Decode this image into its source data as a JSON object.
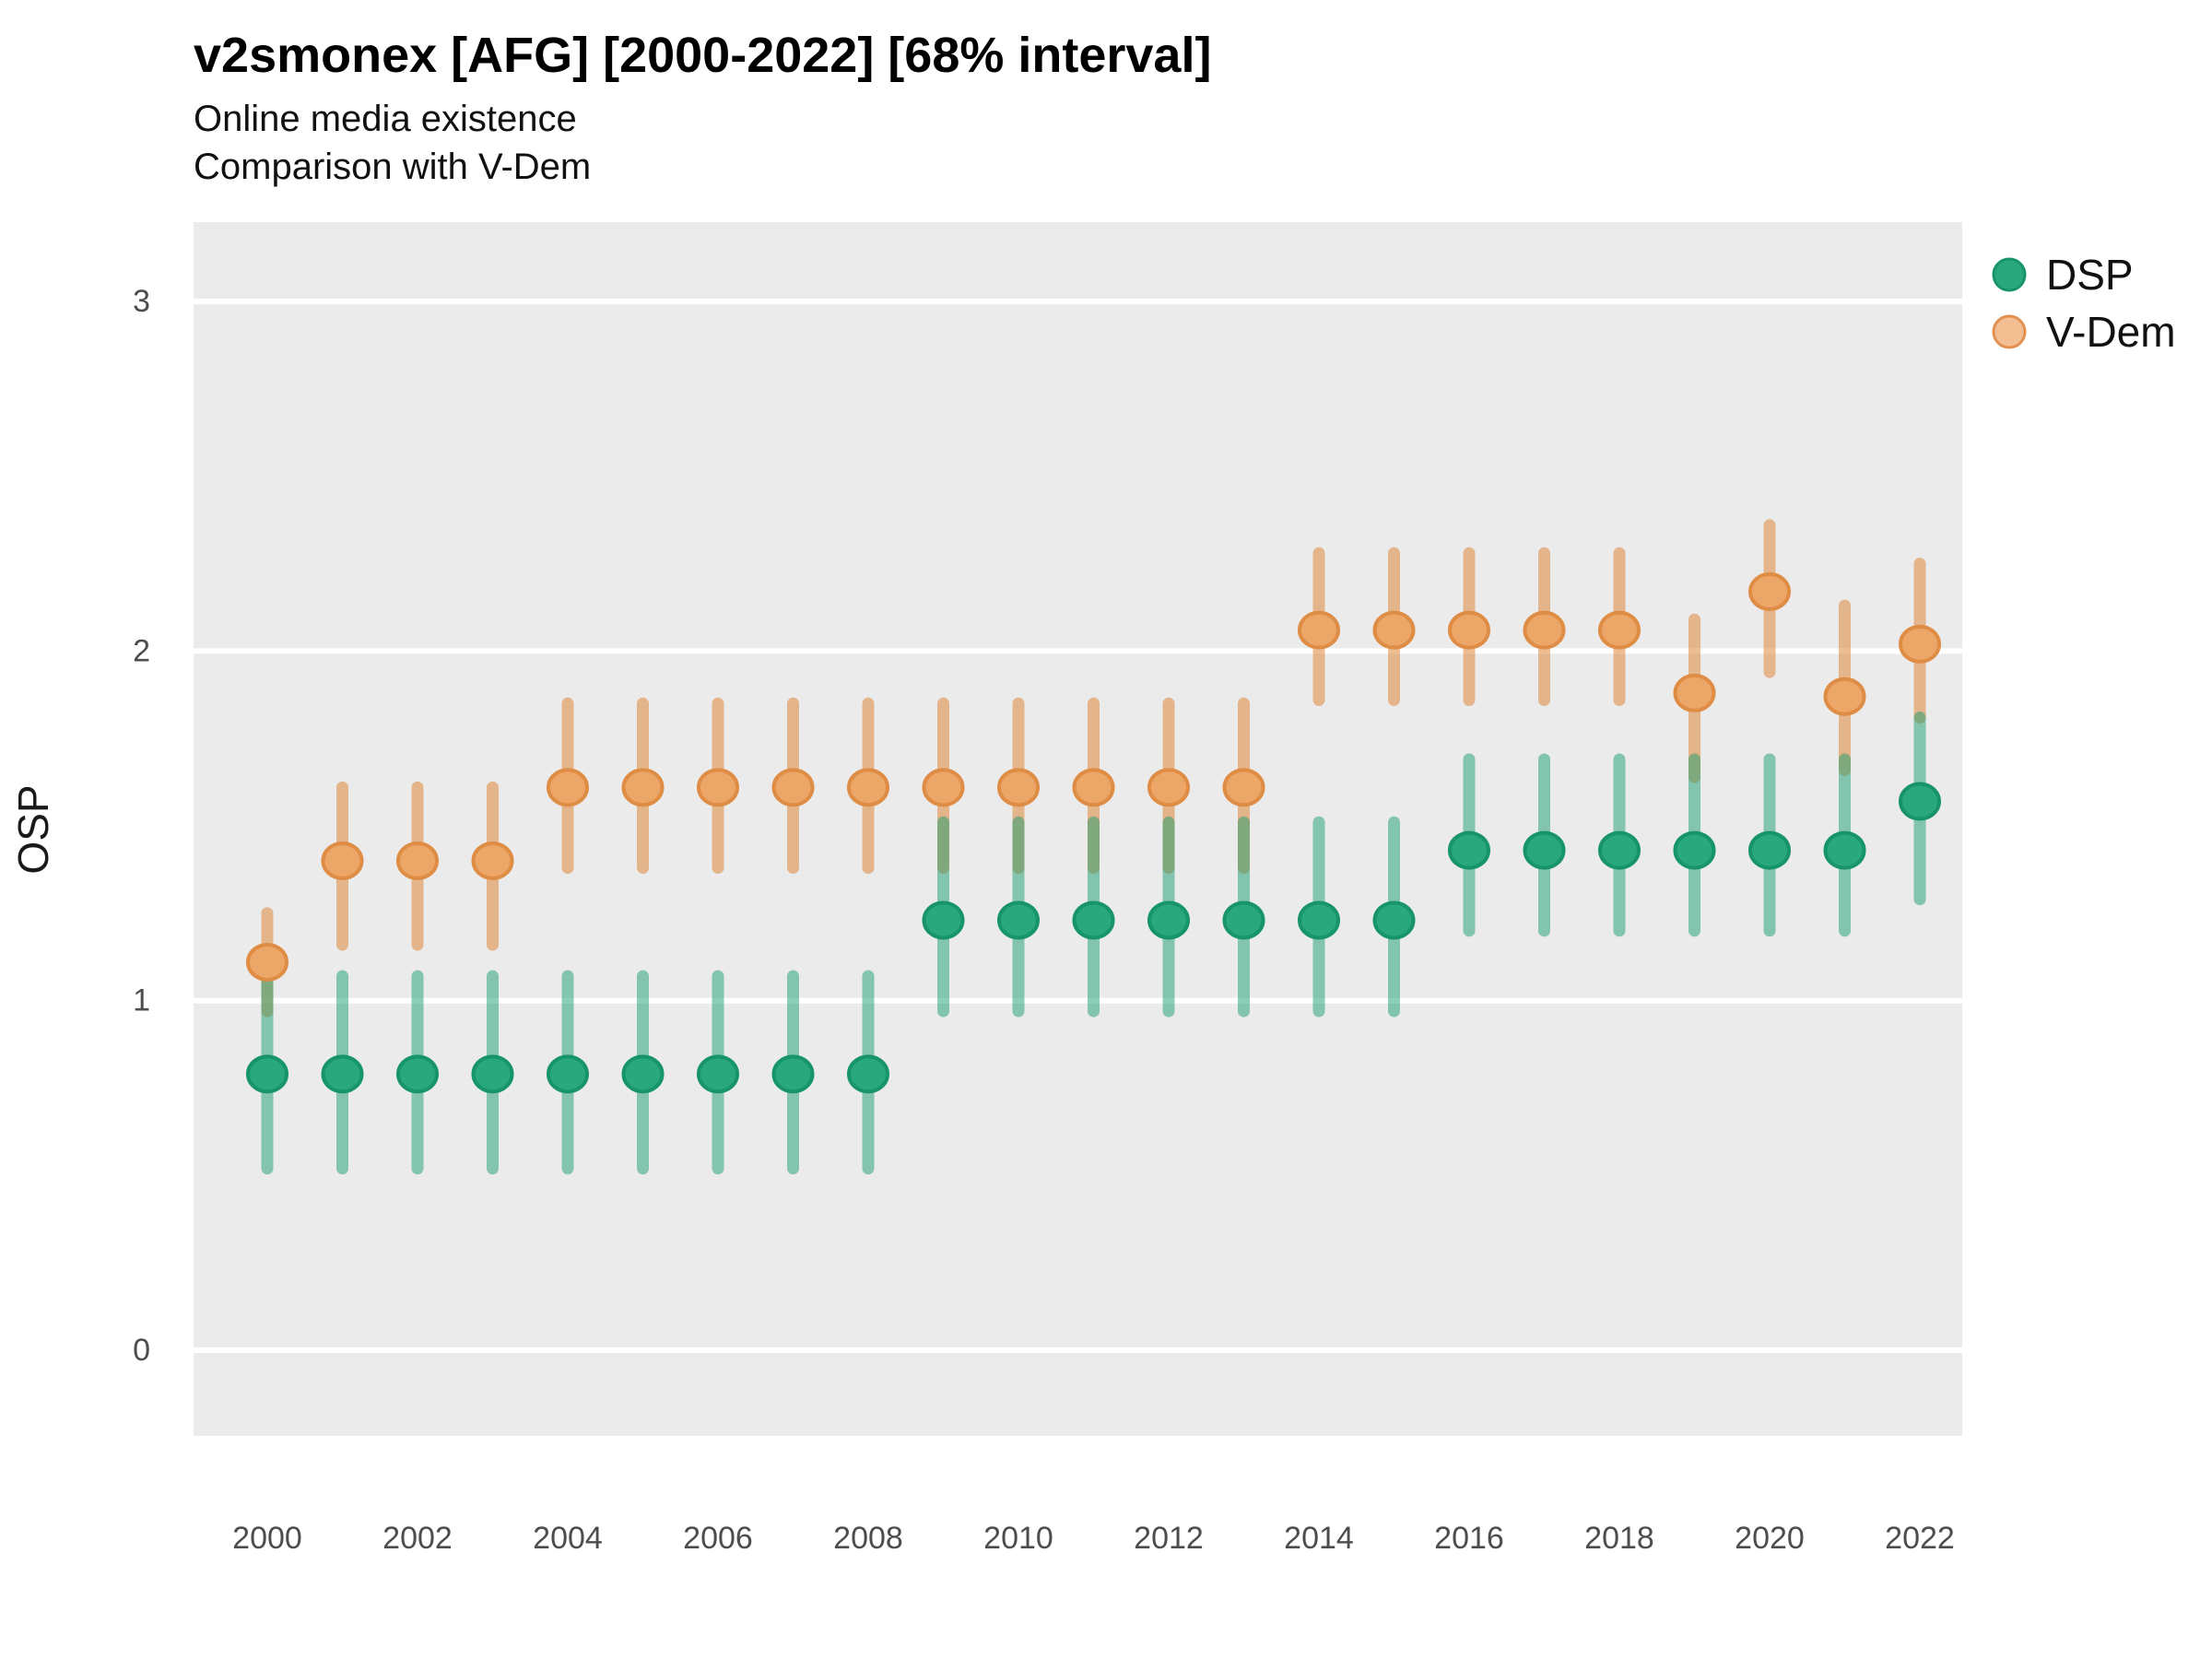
{
  "header": {
    "title": "v2smonex [AFG] [2000-2022] [68% interval]",
    "subtitle1": "Online media existence",
    "subtitle2": "Comparison with V-Dem"
  },
  "legend": {
    "items": [
      {
        "label": "DSP",
        "fill": "#29A77D",
        "stroke": "#179468"
      },
      {
        "label": "V-Dem",
        "fill": "#F2BE92",
        "stroke": "#E2904F"
      }
    ]
  },
  "colors": {
    "panel_background": "#EBEBEB",
    "gridline": "#FFFFFF",
    "page_background": "#FFFFFF",
    "dsp_marker_fill": "#29A77D",
    "dsp_marker_stroke": "#179468",
    "dsp_bar": "rgba(26,158,111,0.5)",
    "vdem_marker_fill": "#EBA668",
    "vdem_marker_stroke": "#DF8C45",
    "vdem_bar": "rgba(223,134,58,0.55)"
  },
  "chart_data": {
    "type": "pointrange",
    "title": "v2smonex [AFG] [2000-2022] [68% interval]",
    "subtitle": [
      "Online media existence",
      "Comparison with V-Dem"
    ],
    "xlabel": "",
    "ylabel": "OSP",
    "ylim": [
      -0.25,
      3.23
    ],
    "xlim": [
      1999,
      2022.6
    ],
    "grid": "horizontal major gridlines only, white on gray panel",
    "legend_position": "top-right",
    "x_tick_labels": [
      "2000",
      "2002",
      "2004",
      "2006",
      "2008",
      "2010",
      "2012",
      "2014",
      "2016",
      "2018",
      "2020",
      "2022"
    ],
    "x_tick_years": [
      2000,
      2002,
      2004,
      2006,
      2008,
      2010,
      2012,
      2014,
      2016,
      2018,
      2020,
      2022
    ],
    "y_tick_labels": [
      "0",
      "1",
      "2",
      "3"
    ],
    "y_tick_values": [
      0,
      1,
      2,
      3
    ],
    "years": [
      2000,
      2001,
      2002,
      2003,
      2004,
      2005,
      2006,
      2007,
      2008,
      2009,
      2010,
      2011,
      2012,
      2013,
      2014,
      2015,
      2016,
      2017,
      2018,
      2019,
      2020,
      2021,
      2022
    ],
    "interval_level": "68%",
    "series": [
      {
        "name": "DSP",
        "values": [
          0.79,
          0.79,
          0.79,
          0.79,
          0.79,
          0.79,
          0.79,
          0.79,
          0.79,
          1.23,
          1.23,
          1.23,
          1.23,
          1.23,
          1.23,
          1.23,
          1.43,
          1.43,
          1.43,
          1.43,
          1.43,
          1.43,
          1.57
        ],
        "lo": [
          0.52,
          0.52,
          0.52,
          0.52,
          0.52,
          0.52,
          0.52,
          0.52,
          0.52,
          0.97,
          0.97,
          0.97,
          0.97,
          0.97,
          0.97,
          0.97,
          1.2,
          1.2,
          1.2,
          1.2,
          1.2,
          1.2,
          1.29
        ],
        "hi": [
          1.07,
          1.07,
          1.07,
          1.07,
          1.07,
          1.07,
          1.07,
          1.07,
          1.07,
          1.51,
          1.51,
          1.51,
          1.51,
          1.51,
          1.51,
          1.51,
          1.69,
          1.69,
          1.69,
          1.69,
          1.69,
          1.69,
          1.81
        ]
      },
      {
        "name": "V-Dem",
        "values": [
          1.11,
          1.4,
          1.4,
          1.4,
          1.61,
          1.61,
          1.61,
          1.61,
          1.61,
          1.61,
          1.61,
          1.61,
          1.61,
          1.61,
          2.06,
          2.06,
          2.06,
          2.06,
          2.06,
          1.88,
          2.17,
          1.87,
          2.02
        ],
        "lo": [
          0.97,
          1.16,
          1.16,
          1.16,
          1.38,
          1.38,
          1.38,
          1.38,
          1.38,
          1.38,
          1.38,
          1.38,
          1.38,
          1.38,
          1.86,
          1.86,
          1.86,
          1.86,
          1.86,
          1.64,
          1.94,
          1.66,
          1.81
        ],
        "hi": [
          1.25,
          1.61,
          1.61,
          1.61,
          1.85,
          1.85,
          1.85,
          1.85,
          1.85,
          1.85,
          1.85,
          1.85,
          1.85,
          1.85,
          2.28,
          2.28,
          2.28,
          2.28,
          2.28,
          2.09,
          2.36,
          2.13,
          2.25
        ]
      }
    ]
  }
}
